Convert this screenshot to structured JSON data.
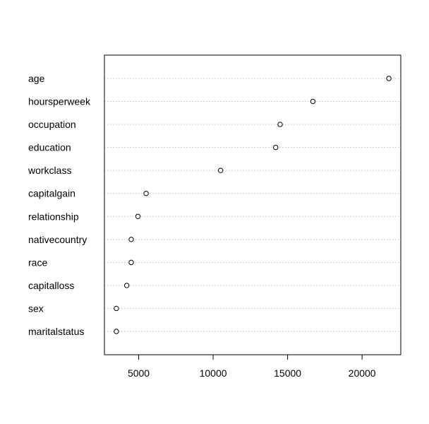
{
  "chart_data": {
    "type": "scatter",
    "subtype": "dotchart",
    "title": "",
    "xlabel": "",
    "ylabel": "",
    "categories": [
      "age",
      "hoursperweek",
      "occupation",
      "education",
      "workclass",
      "capitalgain",
      "relationship",
      "nativecountry",
      "race",
      "capitalloss",
      "sex",
      "maritalstatus"
    ],
    "values": [
      21800,
      16700,
      14500,
      14200,
      10500,
      5500,
      4950,
      4500,
      4500,
      4200,
      3500,
      3500
    ],
    "xlim": [
      2700,
      22600
    ],
    "xticks": [
      5000,
      10000,
      15000,
      20000
    ],
    "xtick_labels": [
      "5000",
      "10000",
      "15000",
      "20000"
    ],
    "grid": "horizontal dotted guide lines",
    "colors": {
      "axis": "#000000",
      "guide": "#bebebe",
      "point": "#000000"
    }
  }
}
